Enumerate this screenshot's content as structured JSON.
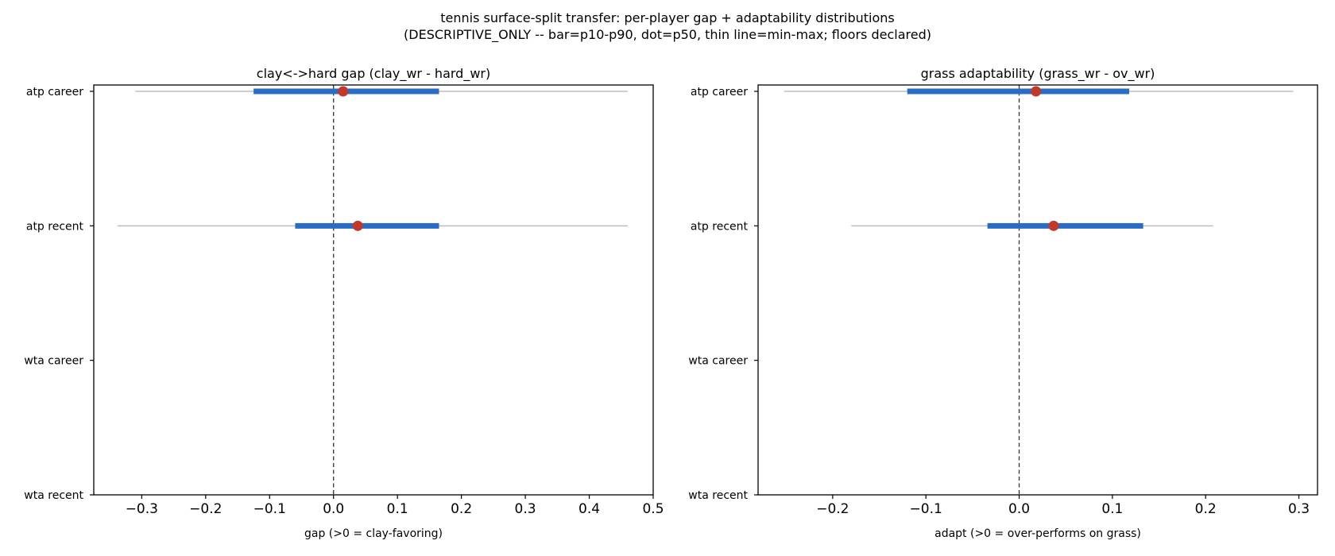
{
  "figure": {
    "title_line1": "tennis surface-split transfer: per-player gap + adaptability distributions",
    "title_line2": "(DESCRIPTIVE_ONLY -- bar=p10-p90, dot=p50, thin line=min-max; floors declared)"
  },
  "colors": {
    "bar": "#2b6cbf",
    "dot": "#c0392b",
    "range_line": "#bdbdbd",
    "zero_line": "#333333",
    "axes": "#000000"
  },
  "chart_data": [
    {
      "type": "range",
      "title": "clay<->hard gap  (clay_wr - hard_wr)",
      "xlabel": "gap  (>0 = clay-favoring)",
      "xlim": [
        -0.375,
        0.5
      ],
      "xticks": [
        -0.3,
        -0.2,
        -0.1,
        0.0,
        0.1,
        0.2,
        0.3,
        0.4,
        0.5
      ],
      "xtick_labels": [
        "−0.3",
        "−0.2",
        "−0.1",
        "0.0",
        "0.1",
        "0.2",
        "0.3",
        "0.4",
        "0.5"
      ],
      "categories": [
        "atp career",
        "atp recent",
        "wta career",
        "wta recent"
      ],
      "zero_line": 0.0,
      "series": [
        {
          "category": "atp career",
          "min": -0.31,
          "p10": -0.125,
          "p50": 0.015,
          "p90": 0.165,
          "max": 0.46
        },
        {
          "category": "atp recent",
          "min": -0.338,
          "p10": -0.06,
          "p50": 0.038,
          "p90": 0.165,
          "max": 0.46
        }
      ]
    },
    {
      "type": "range",
      "title": "grass adaptability  (grass_wr - ov_wr)",
      "xlabel": "adapt  (>0 = over-performs on grass)",
      "xlim": [
        -0.28,
        0.32
      ],
      "xticks": [
        -0.2,
        -0.1,
        0.0,
        0.1,
        0.2,
        0.3
      ],
      "xtick_labels": [
        "−0.2",
        "−0.1",
        "0.0",
        "0.1",
        "0.2",
        "0.3"
      ],
      "categories": [
        "atp career",
        "atp recent",
        "wta career",
        "wta recent"
      ],
      "zero_line": 0.0,
      "series": [
        {
          "category": "atp career",
          "min": -0.252,
          "p10": -0.12,
          "p50": 0.018,
          "p90": 0.118,
          "max": 0.294
        },
        {
          "category": "atp recent",
          "min": -0.18,
          "p10": -0.034,
          "p50": 0.037,
          "p90": 0.133,
          "max": 0.208
        }
      ]
    }
  ]
}
